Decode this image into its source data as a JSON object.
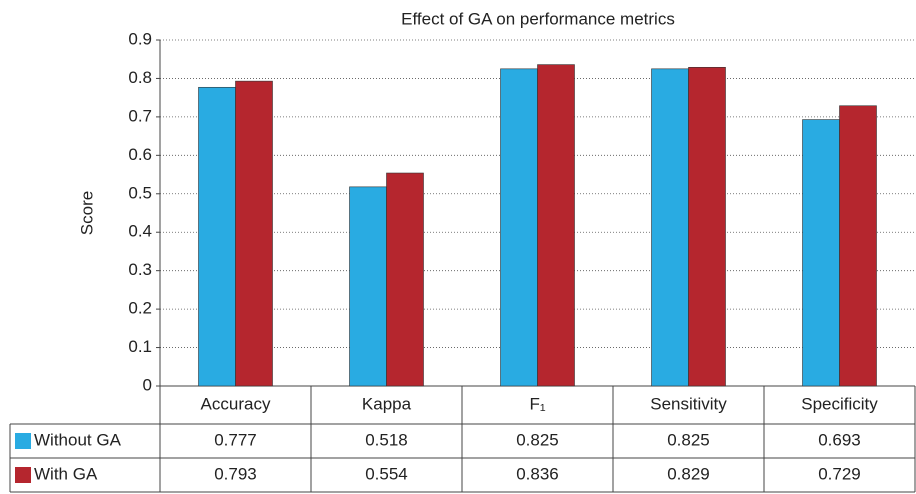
{
  "chart_data": {
    "type": "bar",
    "title": "Effect of GA on performance metrics",
    "y_label": "Score",
    "categories": [
      "Accuracy",
      "Kappa",
      "F₁",
      "Sensitivity",
      "Specificity"
    ],
    "series": [
      {
        "name": "Without GA",
        "color": "#29abe2",
        "values": [
          0.777,
          0.518,
          0.825,
          0.825,
          0.693
        ]
      },
      {
        "name": "With GA",
        "color": "#b5262e",
        "values": [
          0.793,
          0.554,
          0.836,
          0.829,
          0.729
        ]
      }
    ],
    "ylim": [
      0,
      0.9
    ],
    "yticks": [
      0,
      0.1,
      0.2,
      0.3,
      0.4,
      0.5,
      0.6,
      0.7,
      0.8,
      0.9
    ],
    "grid": true
  }
}
